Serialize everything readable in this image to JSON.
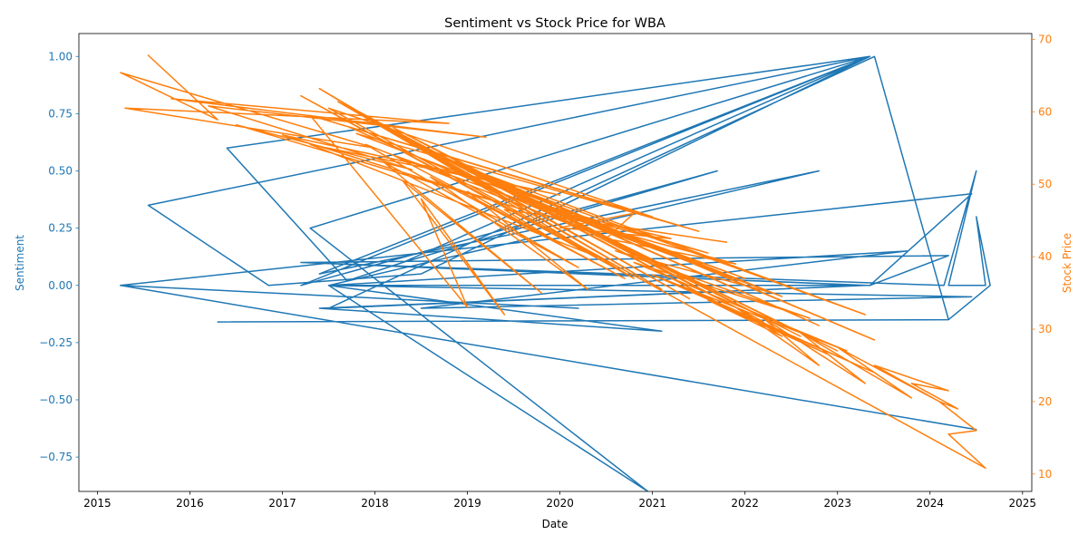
{
  "chart_data": {
    "type": "line",
    "title": "Sentiment vs Stock Price for WBA",
    "xlabel": "Date",
    "ylabel_left": "Sentiment",
    "ylabel_right": "Stock Price",
    "xlim": [
      2014.8,
      2025.1
    ],
    "xticks": [
      2015,
      2016,
      2017,
      2018,
      2019,
      2020,
      2021,
      2022,
      2023,
      2024,
      2025
    ],
    "xtick_labels": [
      "2015",
      "2016",
      "2017",
      "2018",
      "2019",
      "2020",
      "2021",
      "2022",
      "2023",
      "2024",
      "2025"
    ],
    "ylim_left": [
      -0.9,
      1.1
    ],
    "yticks_left": [
      -0.75,
      -0.5,
      -0.25,
      0.0,
      0.25,
      0.5,
      0.75,
      1.0
    ],
    "ytick_labels_left": [
      "−0.75",
      "−0.50",
      "−0.25",
      "0.00",
      "0.25",
      "0.50",
      "0.75",
      "1.00"
    ],
    "ylim_right": [
      7.6,
      70.8
    ],
    "yticks_right": [
      10,
      20,
      30,
      40,
      50,
      60,
      70
    ],
    "ytick_labels_right": [
      "10",
      "20",
      "30",
      "40",
      "50",
      "60",
      "70"
    ],
    "grid": false,
    "legend": "none",
    "colors": {
      "sentiment": "#1f77b4",
      "stock_price": "#ff7f0e"
    },
    "series": [
      {
        "name": "Sentiment",
        "axis": "left",
        "x": [
          2015.25,
          2024.5,
          2015.25,
          2020.2,
          2015.25,
          2024.45,
          2023.35,
          2024.2,
          2017.2,
          2024.15,
          2024.5,
          2024.2,
          2024.6,
          2024.5,
          2024.65,
          2024.2,
          2016.3,
          2024.2,
          2023.4,
          2017.5,
          2023.3,
          2017.4,
          2021.1,
          2017.5,
          2023.75,
          2018.5,
          2024.45,
          2017.5,
          2022.8,
          2017.4,
          2023.35,
          2018.3,
          2021.7,
          2017.2,
          2023.35,
          2015.55,
          2016.85,
          2018.5,
          2023.35,
          2016.4,
          2017.7,
          2018.3,
          2023.35,
          2017.3,
          2020.95,
          2017.5,
          2023.3,
          2017.2,
          2023.35
        ],
        "y": [
          0.0,
          -0.63,
          0.0,
          -0.1,
          0.0,
          0.4,
          0.0,
          0.13,
          0.1,
          0.0,
          0.5,
          0.0,
          0.0,
          0.3,
          0.0,
          -0.15,
          -0.16,
          -0.15,
          1.0,
          -0.1,
          0.0,
          -0.1,
          -0.2,
          0.0,
          0.15,
          -0.1,
          -0.05,
          0.0,
          0.5,
          0.05,
          1.0,
          0.1,
          0.5,
          0.0,
          1.0,
          0.35,
          0.0,
          0.05,
          1.0,
          0.6,
          0.02,
          0.1,
          1.0,
          0.25,
          -0.9,
          0.0,
          0.0,
          0.1,
          0.0
        ]
      },
      {
        "name": "Stock Price",
        "axis": "right",
        "x": [
          2015.55,
          2016.3,
          2015.25,
          2018.0,
          2015.3,
          2018.8,
          2015.8,
          2019.2,
          2016.2,
          2018.4,
          2016.5,
          2019.6,
          2017.0,
          2020.0,
          2017.3,
          2020.4,
          2017.2,
          2020.8,
          2017.4,
          2021.1,
          2017.6,
          2021.4,
          2017.8,
          2021.8,
          2018.0,
          2022.2,
          2018.2,
          2022.6,
          2018.4,
          2023.0,
          2018.6,
          2023.4,
          2018.8,
          2023.3,
          2019.0,
          2022.8,
          2019.2,
          2022.4,
          2019.4,
          2022.0,
          2019.6,
          2021.6,
          2019.8,
          2021.2,
          2020.0,
          2020.8,
          2020.5,
          2021.9,
          2020.3,
          2022.3,
          2020.6,
          2022.7,
          2020.8,
          2023.1,
          2021.0,
          2023.4,
          2021.3,
          2022.9,
          2021.6,
          2022.4,
          2021.9,
          2022.8,
          2022.2,
          2023.3,
          2022.6,
          2023.8,
          2023.0,
          2024.1,
          2023.4,
          2024.2,
          2023.8,
          2024.3,
          2024.1,
          2024.5,
          2024.2,
          2024.6,
          2017.5,
          2021.0,
          2017.7,
          2020.6,
          2017.9,
          2020.2,
          2018.1,
          2019.8,
          2018.3,
          2019.4,
          2018.5,
          2019.0,
          2017.3,
          2021.5,
          2017.8,
          2021.2,
          2018.2,
          2020.7,
          2018.6,
          2020.3,
          2019.0,
          2020.1,
          2019.4,
          2021.8
        ],
        "y": [
          67.8,
          58.9,
          65.4,
          55.0,
          60.5,
          58.4,
          61.8,
          56.5,
          60.8,
          52.0,
          58.2,
          46.5,
          56.8,
          48.5,
          55.5,
          40.0,
          62.2,
          37.0,
          63.2,
          35.5,
          61.4,
          34.2,
          60.2,
          33.0,
          58.6,
          31.0,
          57.8,
          29.0,
          56.0,
          27.0,
          54.5,
          28.5,
          53.2,
          32.0,
          51.8,
          30.5,
          50.8,
          34.5,
          49.2,
          37.0,
          48.0,
          40.5,
          46.8,
          42.5,
          44.0,
          46.0,
          42.5,
          39.0,
          44.5,
          35.0,
          40.8,
          31.5,
          39.2,
          27.0,
          37.5,
          24.0,
          36.0,
          26.5,
          34.0,
          29.0,
          33.0,
          25.0,
          31.5,
          22.5,
          29.5,
          20.5,
          27.5,
          20.0,
          25.0,
          21.5,
          22.5,
          19.0,
          20.0,
          16.0,
          15.5,
          10.8,
          60.5,
          45.5,
          58.0,
          42.0,
          55.5,
          38.5,
          53.0,
          35.0,
          50.5,
          32.0,
          48.0,
          33.0,
          59.5,
          43.5,
          57.0,
          40.5,
          54.0,
          37.0,
          51.0,
          35.5,
          49.0,
          41.0,
          46.5,
          42.0
        ]
      }
    ]
  }
}
